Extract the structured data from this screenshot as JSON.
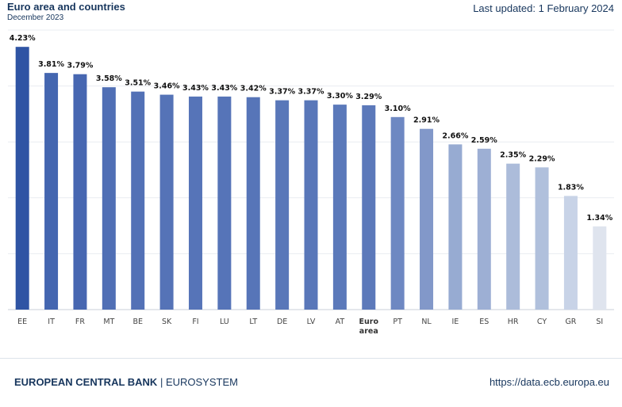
{
  "header": {
    "title": "Euro area and countries",
    "subtitle": "December 2023",
    "updated": "Last updated: 1 February 2024"
  },
  "footer": {
    "brand_main": "EUROPEAN CENTRAL BANK",
    "brand_sep": " | ",
    "brand_sub": "EUROSYSTEM",
    "source": "https://data.ecb.europa.eu"
  },
  "chart_data": {
    "type": "bar",
    "title": "Euro area and countries",
    "subtitle": "December 2023",
    "categories": [
      "EE",
      "IT",
      "FR",
      "MT",
      "BE",
      "SK",
      "FI",
      "LU",
      "LT",
      "DE",
      "LV",
      "AT",
      "Euro area",
      "PT",
      "NL",
      "IE",
      "ES",
      "HR",
      "CY",
      "GR",
      "SI"
    ],
    "values": [
      4.23,
      3.81,
      3.79,
      3.58,
      3.51,
      3.46,
      3.43,
      3.43,
      3.42,
      3.37,
      3.37,
      3.3,
      3.29,
      3.1,
      2.91,
      2.66,
      2.59,
      2.35,
      2.29,
      1.83,
      1.34
    ],
    "labels": [
      "4.23%",
      "3.81%",
      "3.79%",
      "3.58%",
      "3.51%",
      "3.46%",
      "3.43%",
      "3.43%",
      "3.42%",
      "3.37%",
      "3.37%",
      "3.30%",
      "3.29%",
      "3.10%",
      "2.91%",
      "2.66%",
      "2.59%",
      "2.35%",
      "2.29%",
      "1.83%",
      "1.34%"
    ],
    "unit": "%",
    "ylim": [
      0,
      4.5
    ],
    "grid": true,
    "colors": {
      "highest": "#2f55a3",
      "euro_area": "#5678b8",
      "lowest": "#dfe4ee"
    },
    "bar_colors": [
      "#2f54a4",
      "#4466b0",
      "#4767b1",
      "#506fb5",
      "#5371b6",
      "#5573b7",
      "#5674b8",
      "#5674b8",
      "#5775b8",
      "#5977b9",
      "#5977b9",
      "#5b79ba",
      "#5c79ba",
      "#6e88c2",
      "#8298c9",
      "#97abd2",
      "#9dafd4",
      "#acbcda",
      "#b0c0dc",
      "#c8d3e7",
      "#dfe4ee"
    ]
  }
}
